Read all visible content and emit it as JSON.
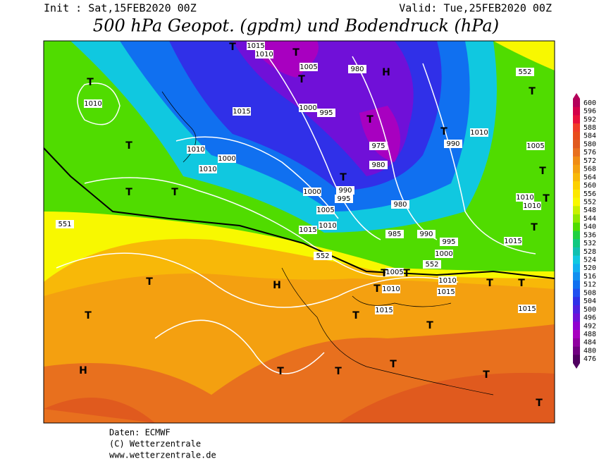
{
  "header": {
    "init": "Init : Sat,15FEB2020 00Z",
    "valid": "Valid: Tue,25FEB2020 00Z",
    "title": "500 hPa Geopot. (gpdm) und Bodendruck (hPa)"
  },
  "colorbar": {
    "values": [
      600,
      596,
      592,
      588,
      584,
      580,
      576,
      572,
      568,
      564,
      560,
      556,
      552,
      548,
      544,
      540,
      536,
      532,
      528,
      524,
      520,
      516,
      512,
      508,
      504,
      500,
      496,
      492,
      488,
      484,
      480,
      476
    ],
    "colors": [
      "#b4005a",
      "#d4004a",
      "#e8103c",
      "#f03c28",
      "#e84c1c",
      "#e05a1e",
      "#e8701e",
      "#f08c14",
      "#f4a010",
      "#f8b808",
      "#fcd000",
      "#fce800",
      "#f8f800",
      "#c8f000",
      "#90e800",
      "#50dc00",
      "#20d040",
      "#10c880",
      "#10c0b0",
      "#10c8e0",
      "#10b0f0",
      "#1090f0",
      "#1070f0",
      "#2050f0",
      "#3030e8",
      "#5020e0",
      "#7010d8",
      "#9000d0",
      "#a800c0",
      "#9000a0",
      "#700080",
      "#500060"
    ]
  },
  "map": {
    "labels": [
      "T",
      "1010",
      "T",
      "T",
      "T",
      "1010",
      "1010",
      "1000",
      "1015",
      "T",
      "1015",
      "1010",
      "T",
      "1005",
      "T",
      "1000",
      "995",
      "980",
      "H",
      "T",
      "975",
      "980",
      "T",
      "990",
      "995",
      "1000",
      "1005",
      "1010",
      "1015",
      "980",
      "985",
      "990",
      "995",
      "1000",
      "T",
      "990",
      "1010",
      "1005",
      "T",
      "552",
      "T",
      "1010",
      "1010",
      "T",
      "T",
      "1015",
      "552",
      "552",
      "1005",
      "T",
      "T",
      "1010",
      "T",
      "1015",
      "1010",
      "1015",
      "1015",
      "T",
      "T",
      "T",
      "H",
      "T",
      "T",
      "T",
      "H",
      "T",
      "T",
      "T",
      "T",
      "T",
      "551"
    ]
  },
  "footer": {
    "source": "Daten: ECMWF",
    "copyright": "(C) Wetterzentrale",
    "url": "www.wetterzentrale.de"
  }
}
